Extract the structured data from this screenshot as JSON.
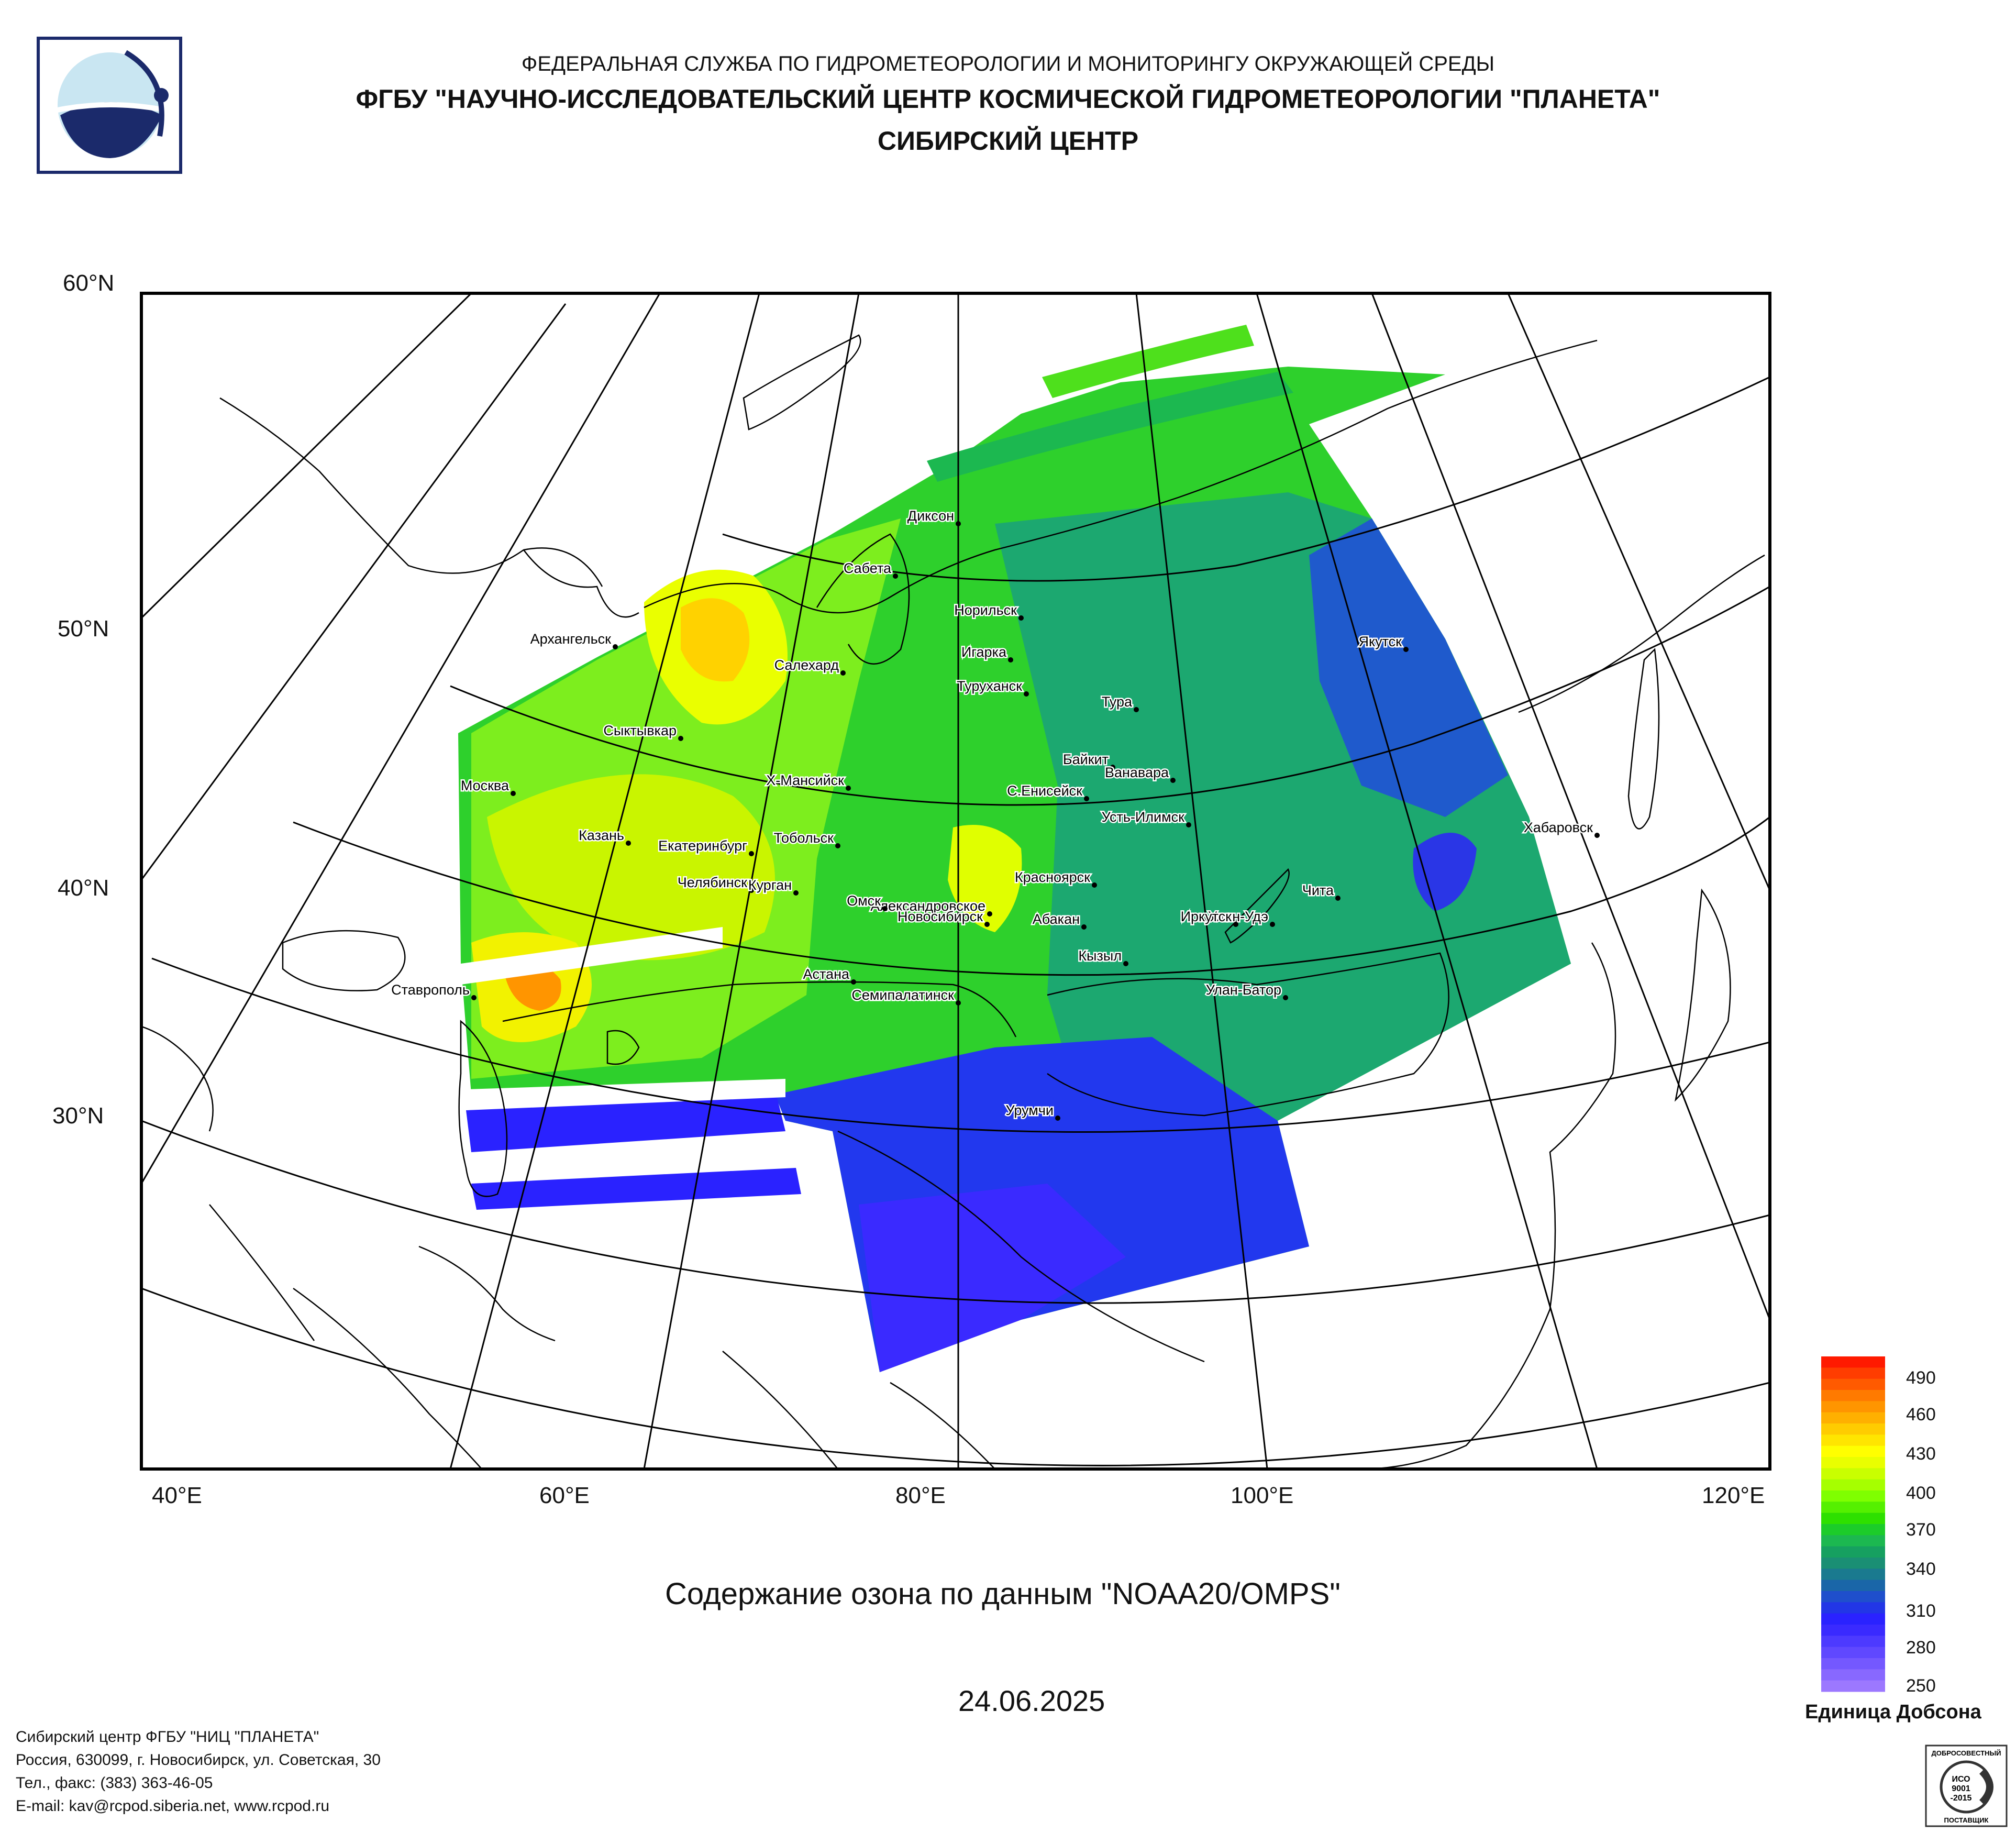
{
  "header": {
    "agency": "ФЕДЕРАЛЬНАЯ СЛУЖБА ПО ГИДРОМЕТЕОРОЛОГИИ И МОНИТОРИНГУ ОКРУЖАЮЩЕЙ СРЕДЫ",
    "institute": "ФГБУ \"НАУЧНО-ИССЛЕДОВАТЕЛЬСКИЙ ЦЕНТР КОСМИЧЕСКОЙ ГИДРОМЕТЕОРОЛОГИИ \"ПЛАНЕТА\"",
    "center": "СИБИРСКИЙ ЦЕНТР"
  },
  "map": {
    "title": "Содержание озона по данным \"NOAA20/OMPS\"",
    "date": "24.06.2025",
    "lat_labels": [
      "60°N",
      "50°N",
      "40°N",
      "30°N"
    ],
    "lon_labels": [
      "40°E",
      "60°E",
      "80°E",
      "100°E",
      "120°E"
    ],
    "cities": [
      "Диксон",
      "Сабета",
      "Норильск",
      "Игарка",
      "Якутск",
      "Архангельск",
      "Салехард",
      "Туруханск",
      "Тура",
      "Сыктывкар",
      "Байкит",
      "Ванавара",
      "Москва",
      "Х-Мансийск",
      "С.Енисейск",
      "Усть-Илимск",
      "Хабаровск",
      "Казань",
      "Тобольск",
      "Екатеринбург",
      "Красноярск",
      "Челябинск",
      "Александровское",
      "Курган",
      "Омск",
      "Новосибирск",
      "Чита",
      "Улан-Удэ",
      "Абакан",
      "Иркутск",
      "Кызыл",
      "Ставрополь",
      "Астана",
      "Семипалатинск",
      "Улан-Батор",
      "Урумчи"
    ]
  },
  "legend": {
    "unit": "Единица Добсона",
    "ticks": [
      "490",
      "460",
      "430",
      "400",
      "370",
      "340",
      "310",
      "280",
      "250"
    ],
    "colors": [
      "#ff1a00",
      "#ff3d00",
      "#ff5a00",
      "#ff7a00",
      "#ff9500",
      "#ffb000",
      "#ffcc00",
      "#ffe500",
      "#ffff00",
      "#e9ff00",
      "#c9ff00",
      "#a6ff00",
      "#7fff00",
      "#55f000",
      "#2ee000",
      "#1ccc2a",
      "#1cb850",
      "#16a060",
      "#1a8f74",
      "#1a7a8f",
      "#1a66a8",
      "#1f4fcc",
      "#2236e6",
      "#2a22ff",
      "#3a2aff",
      "#4d3aff",
      "#6048ff",
      "#7458ff",
      "#8868ff",
      "#9c78ff"
    ]
  },
  "footer": {
    "line1": "Сибирский центр ФГБУ \"НИЦ \"ПЛАНЕТА\"",
    "line2": "Россия, 630099, г. Новосибирск, ул. Советская, 30",
    "line3": "Тел., факс: (383) 363-46-05",
    "line4": "E-mail: kav@rcpod.siberia.net, www.rcpod.ru"
  },
  "cert": {
    "top": "ДОБРОСОВЕСТНЫЙ",
    "l1": "ИСО",
    "l2": "9001",
    "l3": "-2015",
    "bottom": "ПОСТАВЩИК"
  },
  "colors": {
    "frame": "#000000",
    "land_line": "#000000",
    "grid": "#000000"
  }
}
